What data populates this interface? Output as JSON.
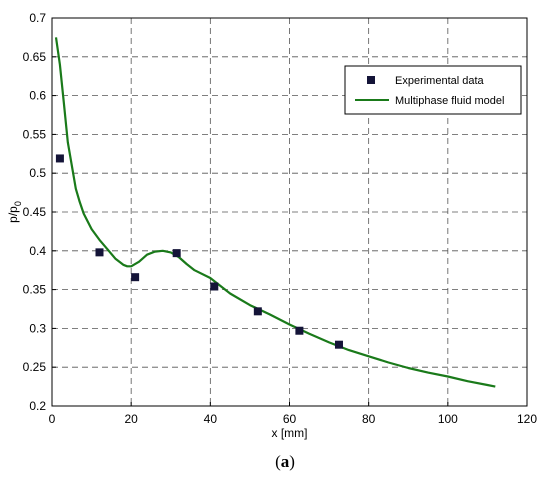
{
  "chart_data": {
    "type": "line",
    "xlabel": "x [mm]",
    "ylabel": "p/p",
    "ylabel_subscript": "0",
    "xlim": [
      0,
      120
    ],
    "ylim": [
      0.2,
      0.7
    ],
    "grid": true,
    "legend_position": "top-right",
    "x_ticks": [
      "0",
      "20",
      "40",
      "60",
      "80",
      "100",
      "120"
    ],
    "y_ticks": [
      "0.2",
      "0.25",
      "0.3",
      "0.35",
      "0.4",
      "0.45",
      "0.5",
      "0.55",
      "0.6",
      "0.65",
      "0.7"
    ],
    "series": [
      {
        "name": "Experimental data",
        "kind": "scatter",
        "marker": "square",
        "color": "#141438",
        "x": [
          2,
          12,
          21,
          31.5,
          41,
          52,
          62.5,
          72.5
        ],
        "y": [
          0.519,
          0.398,
          0.366,
          0.397,
          0.354,
          0.322,
          0.297,
          0.279
        ]
      },
      {
        "name": "Multiphase fluid model",
        "kind": "line",
        "color": "#1a7a1a",
        "x": [
          1,
          2,
          3,
          4,
          5,
          6,
          7,
          8,
          10,
          12,
          14,
          16,
          18,
          19,
          20,
          22,
          24,
          26,
          28,
          30,
          32,
          34,
          36,
          40,
          45,
          50,
          55,
          60,
          65,
          70,
          75,
          80,
          85,
          90,
          95,
          100,
          105,
          110,
          112
        ],
        "y": [
          0.675,
          0.64,
          0.59,
          0.54,
          0.51,
          0.48,
          0.463,
          0.448,
          0.428,
          0.414,
          0.402,
          0.39,
          0.382,
          0.38,
          0.38,
          0.386,
          0.395,
          0.399,
          0.4,
          0.398,
          0.392,
          0.383,
          0.375,
          0.365,
          0.345,
          0.33,
          0.318,
          0.305,
          0.293,
          0.282,
          0.272,
          0.264,
          0.256,
          0.249,
          0.243,
          0.238,
          0.232,
          0.227,
          0.225
        ]
      }
    ]
  },
  "caption": {
    "open": "(",
    "letter": "a",
    "close": ")"
  }
}
